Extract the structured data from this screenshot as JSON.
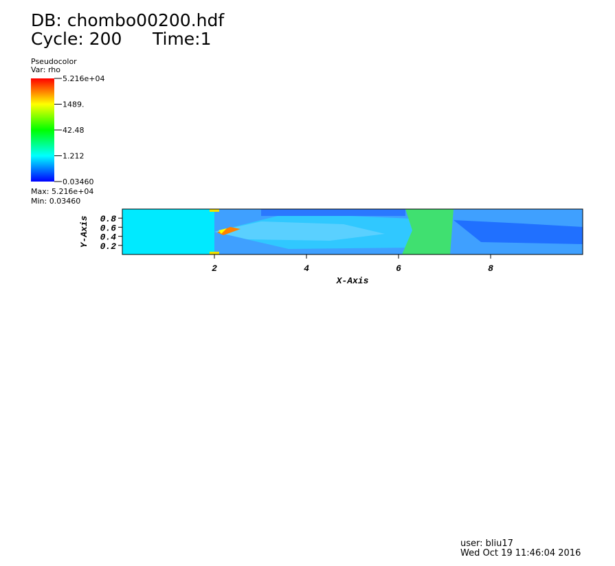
{
  "header": {
    "db": "DB: chombo00200.hdf",
    "cycle": "Cycle: 200",
    "time": "Time:1"
  },
  "legend": {
    "plot": "Pseudocolor",
    "var": "Var: rho",
    "max": "Max: 5.216e+04",
    "min": "Min: 0.03460"
  },
  "chart_data": {
    "type": "pseudocolor",
    "x_label": "X-Axis",
    "y_label": "Y-Axis",
    "xlim": [
      0,
      10
    ],
    "ylim": [
      0,
      1
    ],
    "xticks": [
      2,
      4,
      6,
      8
    ],
    "yticks": [
      0.2,
      0.4,
      0.6,
      0.8
    ],
    "colorbar": {
      "log": true,
      "lim": [
        0.0346,
        52160
      ],
      "ticks": [
        {
          "value": 52160,
          "label": "5.216e+04"
        },
        {
          "value": 1489,
          "label": "1489."
        },
        42.48,
        1.212,
        {
          "value": 0.0346,
          "label": "0.03460"
        }
      ],
      "colormap": [
        "#0000ff",
        "#00ffff",
        "#00ff00",
        "#ffff00",
        "#ff0000"
      ]
    }
  },
  "footer": {
    "user": "user: bliu17",
    "date": "Wed Oct 19 11:46:04 2016"
  }
}
